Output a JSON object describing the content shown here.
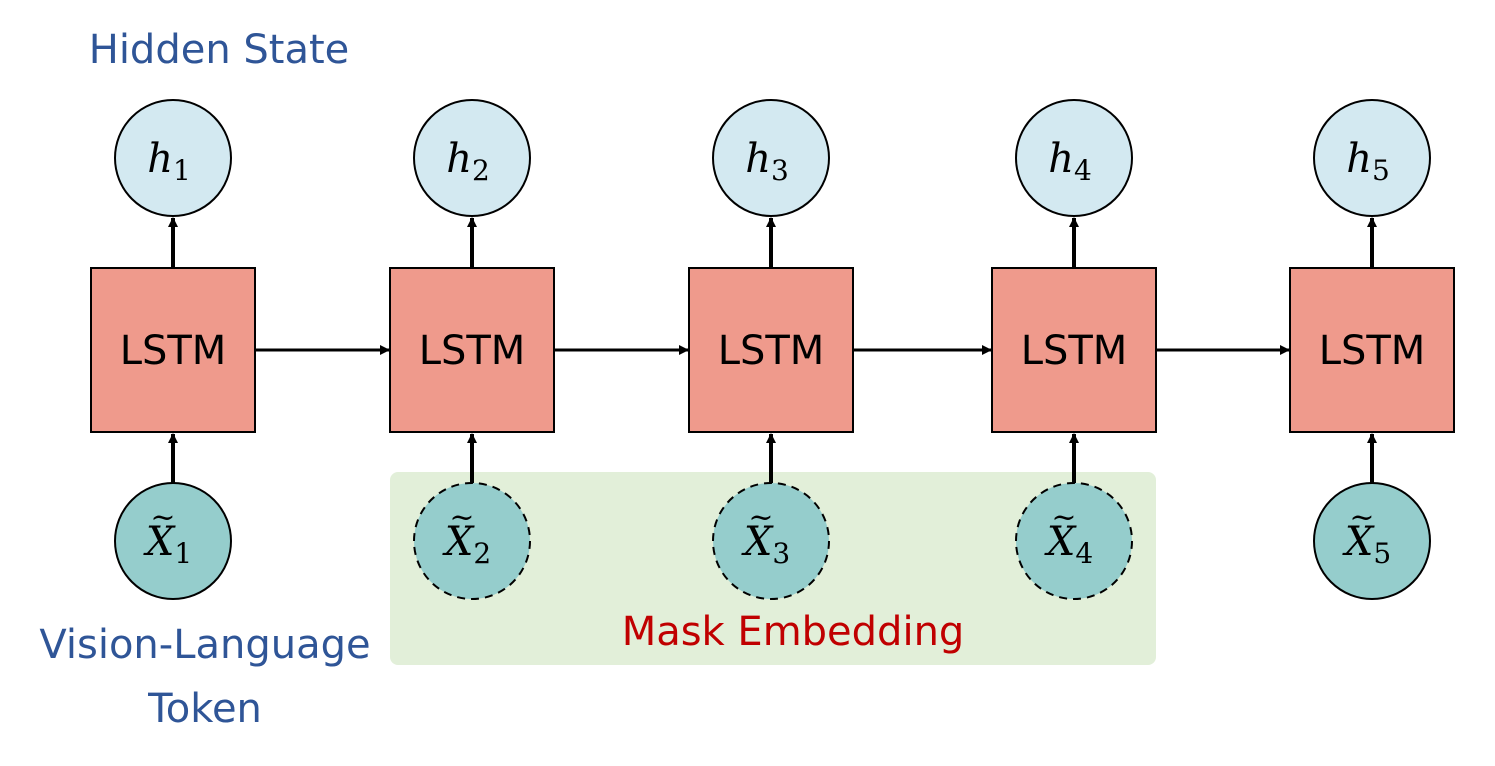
{
  "labels": {
    "hidden_state": "Hidden State",
    "vl_token_line1": "Vision-Language",
    "vl_token_line2": "Token",
    "mask_embedding": "Mask Embedding"
  },
  "cells": [
    {
      "label": "LSTM",
      "hidden": "h",
      "hidden_sub": "1",
      "input": "X",
      "input_sub": "1",
      "masked": false
    },
    {
      "label": "LSTM",
      "hidden": "h",
      "hidden_sub": "2",
      "input": "X",
      "input_sub": "2",
      "masked": true
    },
    {
      "label": "LSTM",
      "hidden": "h",
      "hidden_sub": "3",
      "input": "X",
      "input_sub": "3",
      "masked": true
    },
    {
      "label": "LSTM",
      "hidden": "h",
      "hidden_sub": "4",
      "input": "X",
      "input_sub": "4",
      "masked": true
    },
    {
      "label": "LSTM",
      "hidden": "h",
      "hidden_sub": "5",
      "input": "X",
      "input_sub": "5",
      "masked": false
    }
  ],
  "colors": {
    "lstm_fill": "#ef9a8c",
    "hidden_fill": "#d3e9f1",
    "input_fill": "#95cdcc",
    "mask_region_fill": "#e2efd9",
    "hidden_label": "#2f5597",
    "mask_label": "#c00000"
  }
}
